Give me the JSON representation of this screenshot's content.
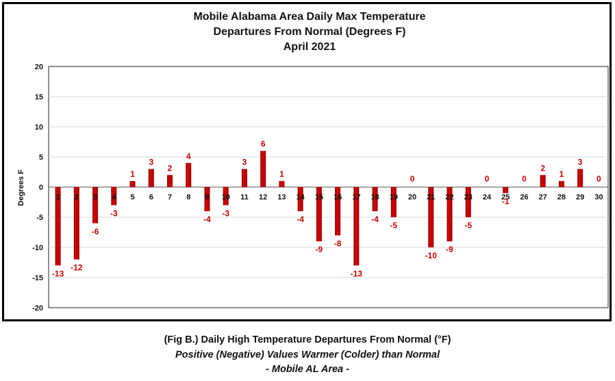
{
  "chart_data": {
    "type": "bar",
    "title": [
      "Mobile Alabama Area Daily Max Temperature",
      "Departures From Normal (Degrees F)",
      "April 2021"
    ],
    "ylabel": "Degrees F",
    "xlabel": "",
    "ylim": [
      -20,
      20
    ],
    "yticks": [
      20,
      15,
      10,
      5,
      0,
      -5,
      -10,
      -15,
      -20
    ],
    "grid": true,
    "categories": [
      "1",
      "2",
      "3",
      "4",
      "5",
      "6",
      "7",
      "8",
      "9",
      "10",
      "11",
      "12",
      "13",
      "14",
      "15",
      "16",
      "17",
      "18",
      "19",
      "20",
      "21",
      "22",
      "23",
      "24",
      "25",
      "26",
      "27",
      "28",
      "29",
      "30"
    ],
    "values": [
      -13,
      -12,
      -6,
      -3,
      1,
      3,
      2,
      4,
      -4,
      -3,
      3,
      6,
      1,
      -4,
      -9,
      -8,
      -13,
      -4,
      -5,
      0,
      -10,
      -9,
      -5,
      0,
      -1,
      0,
      2,
      1,
      3,
      0
    ],
    "bar_color": "#cc0000",
    "label_color": "#cc0000"
  },
  "captions": {
    "line1": "(Fig B.) Daily High Temperature Departures From Normal (°F)",
    "line2": "Positive (Negative) Values Warmer (Colder) than Normal",
    "line3": "- Mobile AL Area -"
  }
}
